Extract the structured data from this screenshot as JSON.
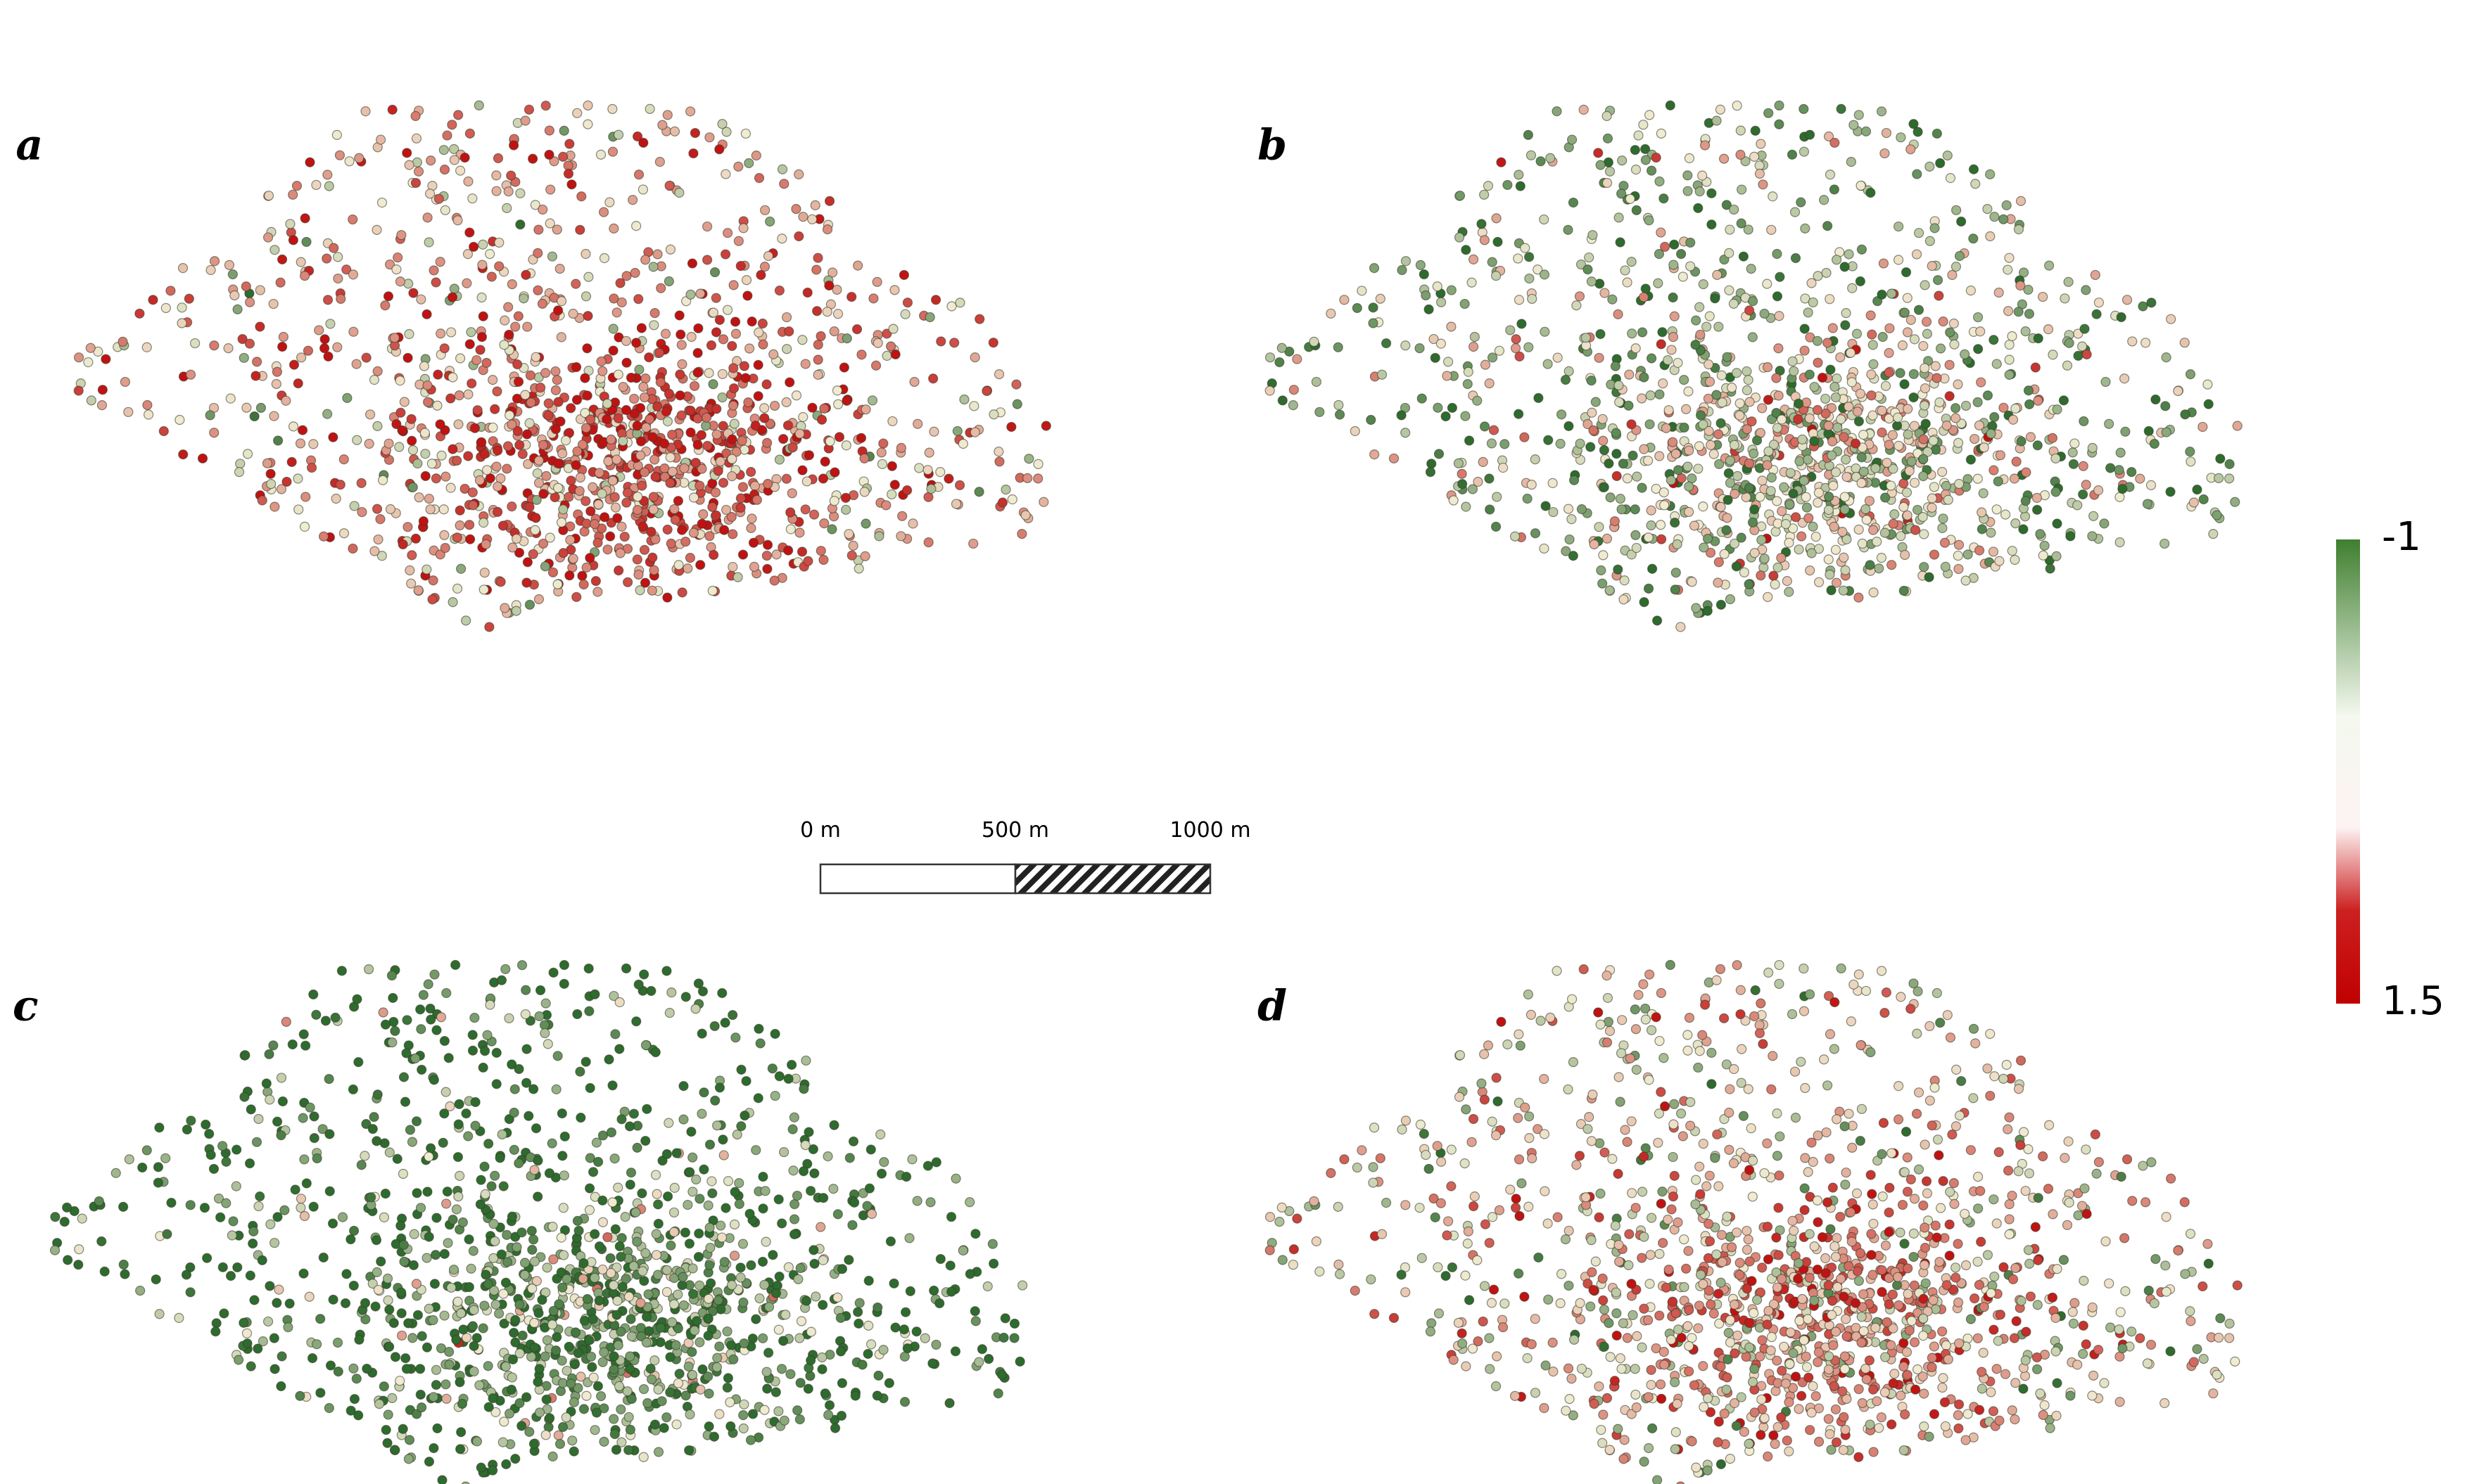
{
  "panels": [
    {
      "label": "a"
    },
    {
      "label": "b"
    },
    {
      "label": "c"
    },
    {
      "label": "d"
    }
  ],
  "scale_bar": {
    "ticks": [
      {
        "value": 0,
        "label": "0 m"
      },
      {
        "value": 500,
        "label": "500 m"
      },
      {
        "value": 1000,
        "label": "1000 m"
      }
    ]
  },
  "colorbar": {
    "ticks": [
      -1,
      1.5
    ]
  }
}
